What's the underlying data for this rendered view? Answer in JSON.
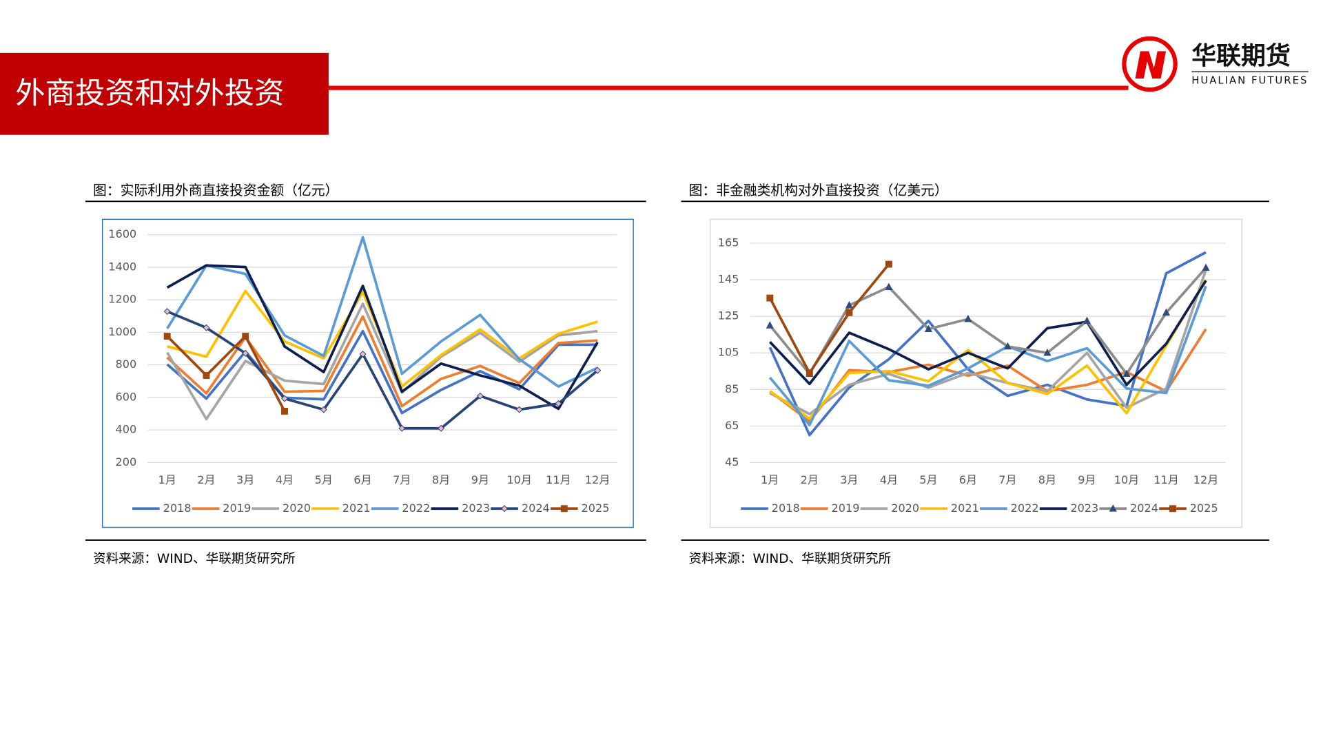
{
  "header": {
    "title": "外商投资和对外投资",
    "logo_cn": "华联期货",
    "logo_en": "HUALIAN FUTURES"
  },
  "chart_data": [
    {
      "type": "line",
      "title": "图：实际利用外商直接投资金额（亿元）",
      "source": "资料来源：WIND、华联期货研究所",
      "categories": [
        "1月",
        "2月",
        "3月",
        "4月",
        "5月",
        "6月",
        "7月",
        "8月",
        "9月",
        "10月",
        "11月",
        "12月"
      ],
      "ylim": [
        200,
        1600
      ],
      "yticks": [
        200,
        400,
        600,
        800,
        1000,
        1200,
        1400,
        1600
      ],
      "grid": true,
      "legend": "bottom",
      "frame_color": "#2e75b6",
      "series": [
        {
          "name": "2018",
          "color": "#4472c4",
          "values": [
            803,
            593,
            882,
            598,
            588,
            1007,
            504,
            646,
            761,
            650,
            924,
            924
          ]
        },
        {
          "name": "2019",
          "color": "#ed7d31",
          "values": [
            845,
            625,
            970,
            635,
            640,
            1097,
            546,
            714,
            793,
            688,
            934,
            950
          ]
        },
        {
          "name": "2020",
          "color": "#a5a5a5",
          "values": [
            876,
            467,
            824,
            703,
            682,
            1175,
            630,
            850,
            997,
            819,
            981,
            1007
          ]
        },
        {
          "name": "2021",
          "color": "#ffc000",
          "values": [
            913,
            850,
            1254,
            944,
            840,
            1248,
            667,
            860,
            1018,
            840,
            991,
            1065
          ]
        },
        {
          "name": "2022",
          "color": "#5b9bd5",
          "values": [
            1023,
            1411,
            1359,
            981,
            855,
            1584,
            745,
            944,
            1107,
            835,
            667,
            782
          ]
        },
        {
          "name": "2023",
          "color": "#0d1f4f",
          "values": [
            1275,
            1411,
            1401,
            913,
            756,
            1285,
            635,
            808,
            735,
            672,
            530,
            939
          ]
        },
        {
          "name": "2024",
          "color": "#264478",
          "marker": "diamond",
          "marker_color": "#e8b8c8",
          "values": [
            1128,
            1028,
            871,
            593,
            525,
            866,
            410,
            410,
            609,
            525,
            562,
            766
          ]
        },
        {
          "name": "2025",
          "color": "#9e480e",
          "marker": "square",
          "marker_color": "#9e480e",
          "values": [
            976,
            735,
            976,
            515,
            null,
            null,
            null,
            null,
            null,
            null,
            null,
            null
          ]
        }
      ]
    },
    {
      "type": "line",
      "title": "图：非金融类机构对外直接投资（亿美元）",
      "source": "资料来源：WIND、华联期货研究所",
      "categories": [
        "1月",
        "2月",
        "3月",
        "4月",
        "5月",
        "6月",
        "7月",
        "8月",
        "9月",
        "10月",
        "11月",
        "12月"
      ],
      "ylim": [
        45,
        165
      ],
      "yticks": [
        45,
        65,
        85,
        105,
        125,
        145,
        165
      ],
      "grid": true,
      "legend": "bottom",
      "frame_color": "#d9d9d9",
      "series": [
        {
          "name": "2018",
          "color": "#4472c4",
          "values": [
            108,
            60,
            86,
            101.5,
            122.5,
            96,
            81.5,
            87.5,
            79.5,
            76,
            148.5,
            160
          ]
        },
        {
          "name": "2019",
          "color": "#ed7d31",
          "values": [
            84,
            67.5,
            95.5,
            94.5,
            98.5,
            92.5,
            98,
            84,
            87.5,
            94.5,
            84,
            118
          ]
        },
        {
          "name": "2020",
          "color": "#a5a5a5",
          "values": [
            83,
            71.5,
            87.5,
            93.5,
            86,
            94,
            88.5,
            84,
            105,
            75,
            85.5,
            150.5
          ]
        },
        {
          "name": "2021",
          "color": "#ffc000",
          "values": [
            84,
            69,
            94,
            95,
            89.5,
            106.5,
            88.5,
            82.5,
            98,
            72,
            109,
            145
          ]
        },
        {
          "name": "2022",
          "color": "#5b9bd5",
          "values": [
            91.5,
            65.5,
            111.5,
            90,
            87,
            96.5,
            108.5,
            100.5,
            107.5,
            85.5,
            83,
            141.5
          ]
        },
        {
          "name": "2023",
          "color": "#0d1f4f",
          "values": [
            111,
            88,
            116,
            107,
            96,
            105,
            96.5,
            118.5,
            122,
            87.5,
            110,
            144.5
          ]
        },
        {
          "name": "2024",
          "color": "#8c8c8c",
          "marker": "triangle",
          "marker_color": "#2f4b7c",
          "values": [
            120,
            93.5,
            131,
            141,
            118,
            123.5,
            108.5,
            105,
            122.5,
            93.5,
            127,
            151.5
          ]
        },
        {
          "name": "2025",
          "color": "#9e480e",
          "marker": "square",
          "marker_color": "#9e480e",
          "values": [
            135,
            94,
            127,
            153.5,
            null,
            null,
            null,
            null,
            null,
            null,
            null,
            null
          ]
        }
      ]
    }
  ]
}
